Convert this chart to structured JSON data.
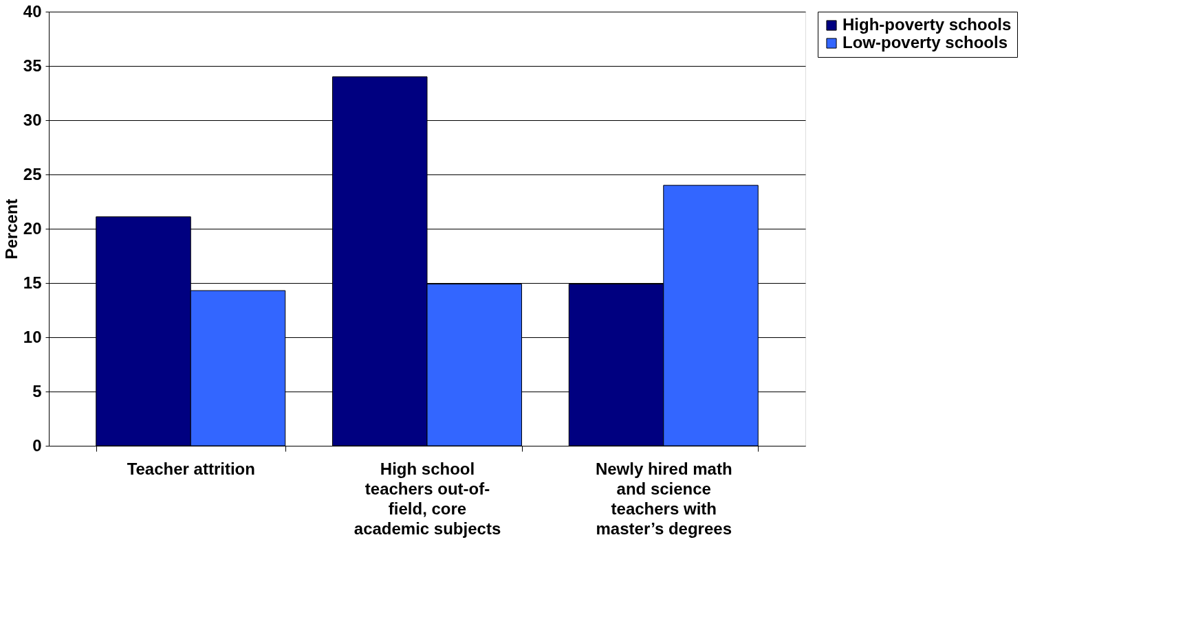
{
  "chart_data": {
    "type": "bar",
    "ylabel": "Percent",
    "categories": [
      "Teacher attrition",
      "High school teachers out-of-field, core academic subjects",
      "Newly hired math and science teachers with master’s degrees"
    ],
    "series": [
      {
        "name": "High-poverty schools",
        "color": "#000080",
        "values": [
          21.1,
          34,
          14.9
        ]
      },
      {
        "name": "Low-poverty schools",
        "color": "#3366ff",
        "values": [
          14.3,
          14.9,
          24
        ]
      }
    ],
    "ylim": [
      0,
      40
    ],
    "yticks": [
      0,
      5,
      10,
      15,
      20,
      25,
      30,
      35,
      40
    ],
    "grid": "y",
    "legend": "right"
  }
}
